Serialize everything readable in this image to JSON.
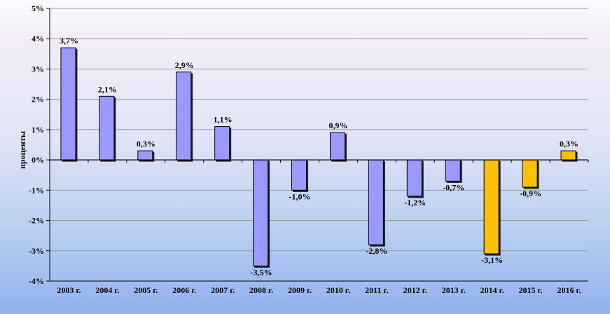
{
  "chart_data": {
    "type": "bar",
    "title": "",
    "xlabel": "",
    "ylabel": "проценты",
    "categories": [
      "2003 г.",
      "2004 г.",
      "2005 г.",
      "2006 г.",
      "2007 г.",
      "2008 г.",
      "2009 г.",
      "2010 г.",
      "2011 г.",
      "2012 г.",
      "2013 г.",
      "2014 г.",
      "2015 г.",
      "2016 г."
    ],
    "values": [
      3.7,
      2.1,
      0.3,
      2.9,
      1.1,
      -3.5,
      -1.0,
      0.9,
      -2.8,
      -1.2,
      -0.7,
      -3.1,
      -0.9,
      0.3
    ],
    "value_labels": [
      "3,7%",
      "2,1%",
      "0,3%",
      "2,9%",
      "1,1%",
      "-3,5%",
      "-1,0%",
      "0,9%",
      "-2,8%",
      "-1,2%",
      "-0,7%",
      "-3,1%",
      "-0,9%",
      "0,3%"
    ],
    "y_tick_labels": [
      "-4%",
      "-3%",
      "-2%",
      "-1%",
      "0%",
      "1%",
      "2%",
      "3%",
      "4%",
      "5%"
    ],
    "y_ticks": [
      -4,
      -3,
      -2,
      -1,
      0,
      1,
      2,
      3,
      4,
      5
    ],
    "ylim": [
      -4,
      5
    ],
    "grid": true,
    "legend": "none",
    "colors": {
      "actual": "#9999ff",
      "forecast": "#ffc000",
      "grid": "#999999",
      "axis": "#000000"
    },
    "bar_color_keys": [
      "actual",
      "actual",
      "actual",
      "actual",
      "actual",
      "actual",
      "actual",
      "actual",
      "actual",
      "actual",
      "actual",
      "forecast",
      "forecast",
      "forecast"
    ]
  }
}
